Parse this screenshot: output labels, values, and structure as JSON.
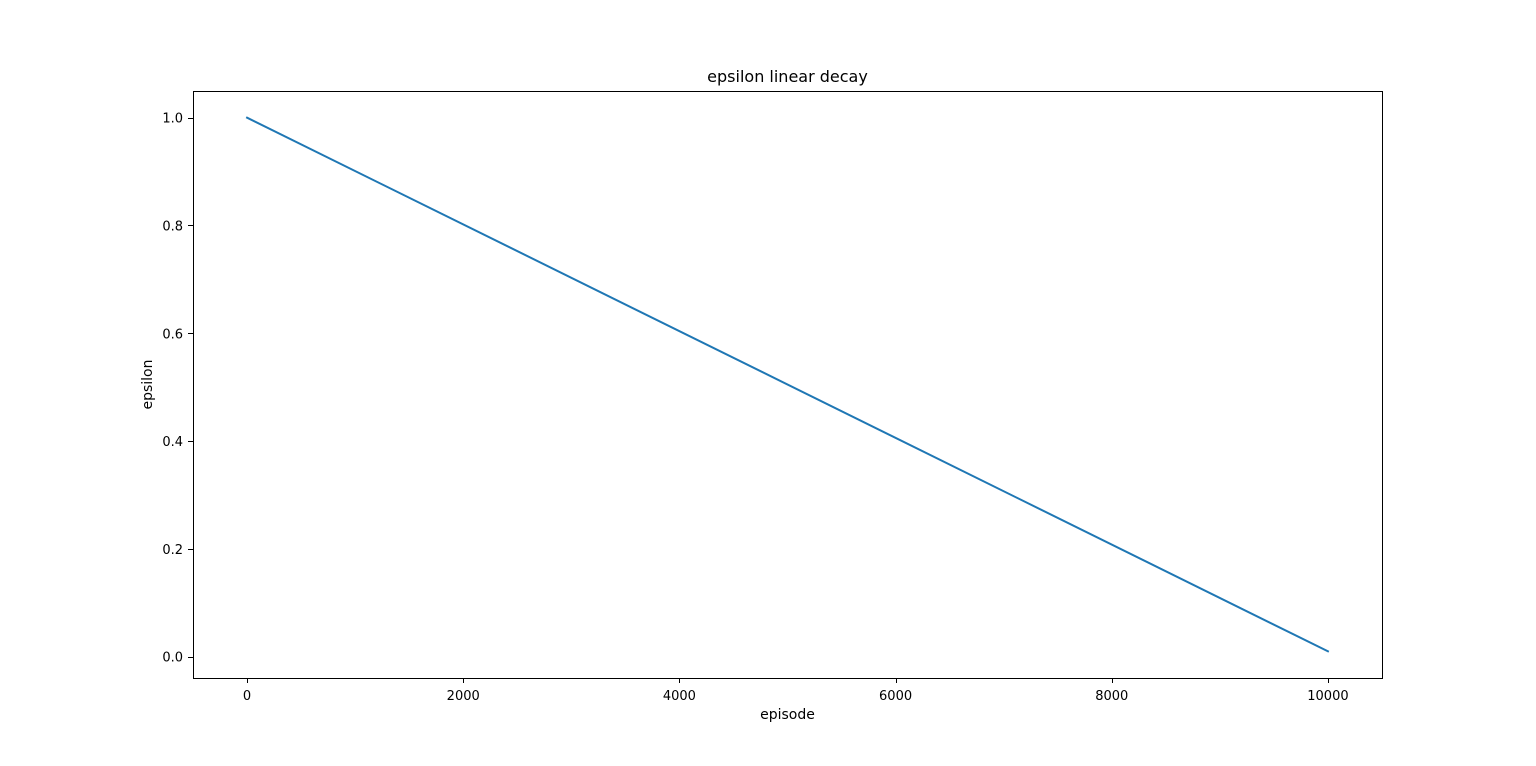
{
  "chart_data": {
    "type": "line",
    "title": "epsilon linear decay",
    "xlabel": "episode",
    "ylabel": "epsilon",
    "xlim": [
      -500,
      10500
    ],
    "ylim": [
      -0.0395,
      1.0495
    ],
    "xticks": [
      0,
      2000,
      4000,
      6000,
      8000,
      10000
    ],
    "yticks": [
      0.0,
      0.2,
      0.4,
      0.6,
      0.8,
      1.0
    ],
    "xtick_labels": [
      "0",
      "2000",
      "4000",
      "6000",
      "8000",
      "10000"
    ],
    "ytick_labels": [
      "0.0",
      "0.2",
      "0.4",
      "0.6",
      "0.8",
      "1.0"
    ],
    "grid": false,
    "legend": "none",
    "series": [
      {
        "color": "#1f77b4",
        "x": [
          0,
          10000
        ],
        "y": [
          1.0,
          0.01
        ]
      }
    ]
  }
}
